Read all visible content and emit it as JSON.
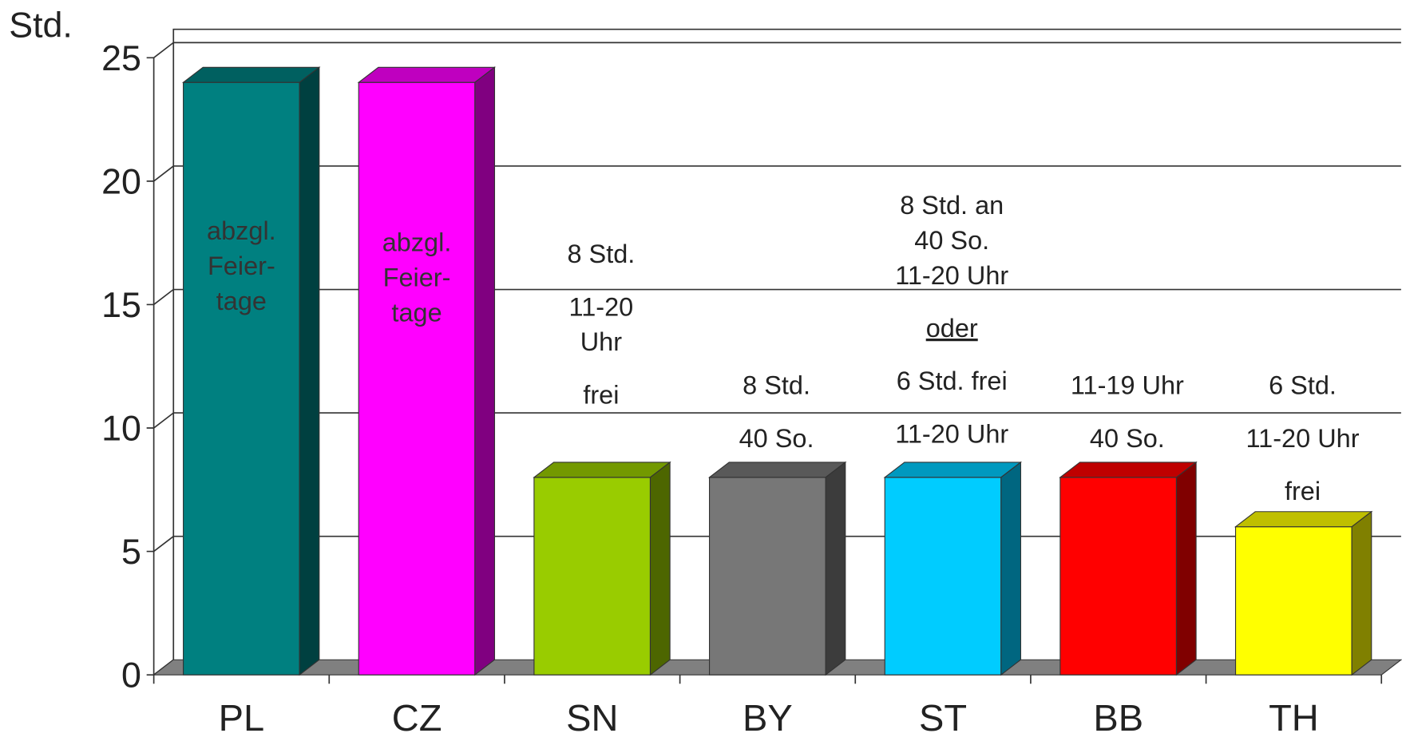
{
  "chart_data": {
    "type": "bar3d",
    "y_label": "Std.",
    "categories": [
      "PL",
      "CZ",
      "SN",
      "BY",
      "ST",
      "BB",
      "TH"
    ],
    "values": [
      24,
      24,
      8,
      8,
      8,
      8,
      6
    ],
    "colors": [
      "#008080",
      "#ff00ff",
      "#99cc00",
      "#777777",
      "#00ccff",
      "#ff0000",
      "#ffff00"
    ],
    "ylim": [
      0,
      25
    ],
    "yticks": [
      0,
      5,
      10,
      15,
      20,
      25
    ],
    "grid": true,
    "annotations": [
      [
        [
          "abzgl.",
          "Feier-",
          "tage"
        ]
      ],
      [
        [
          "abzgl.",
          "Feier-",
          "tage"
        ]
      ],
      [
        [
          "8 Std."
        ],
        [
          "11-20",
          "Uhr"
        ],
        [
          "frei"
        ]
      ],
      [
        [
          "8 Std."
        ],
        [
          "40 So."
        ]
      ],
      [
        [
          "8 Std. an",
          "40 So.",
          "11-20 Uhr"
        ],
        [
          "oder"
        ],
        [
          "6 Std. frei"
        ],
        [
          "11-20 Uhr"
        ]
      ],
      [
        [
          "11-19 Uhr"
        ],
        [
          "40 So."
        ]
      ],
      [
        [
          "6 Std."
        ],
        [
          "11-20 Uhr"
        ],
        [
          "frei"
        ]
      ]
    ]
  }
}
